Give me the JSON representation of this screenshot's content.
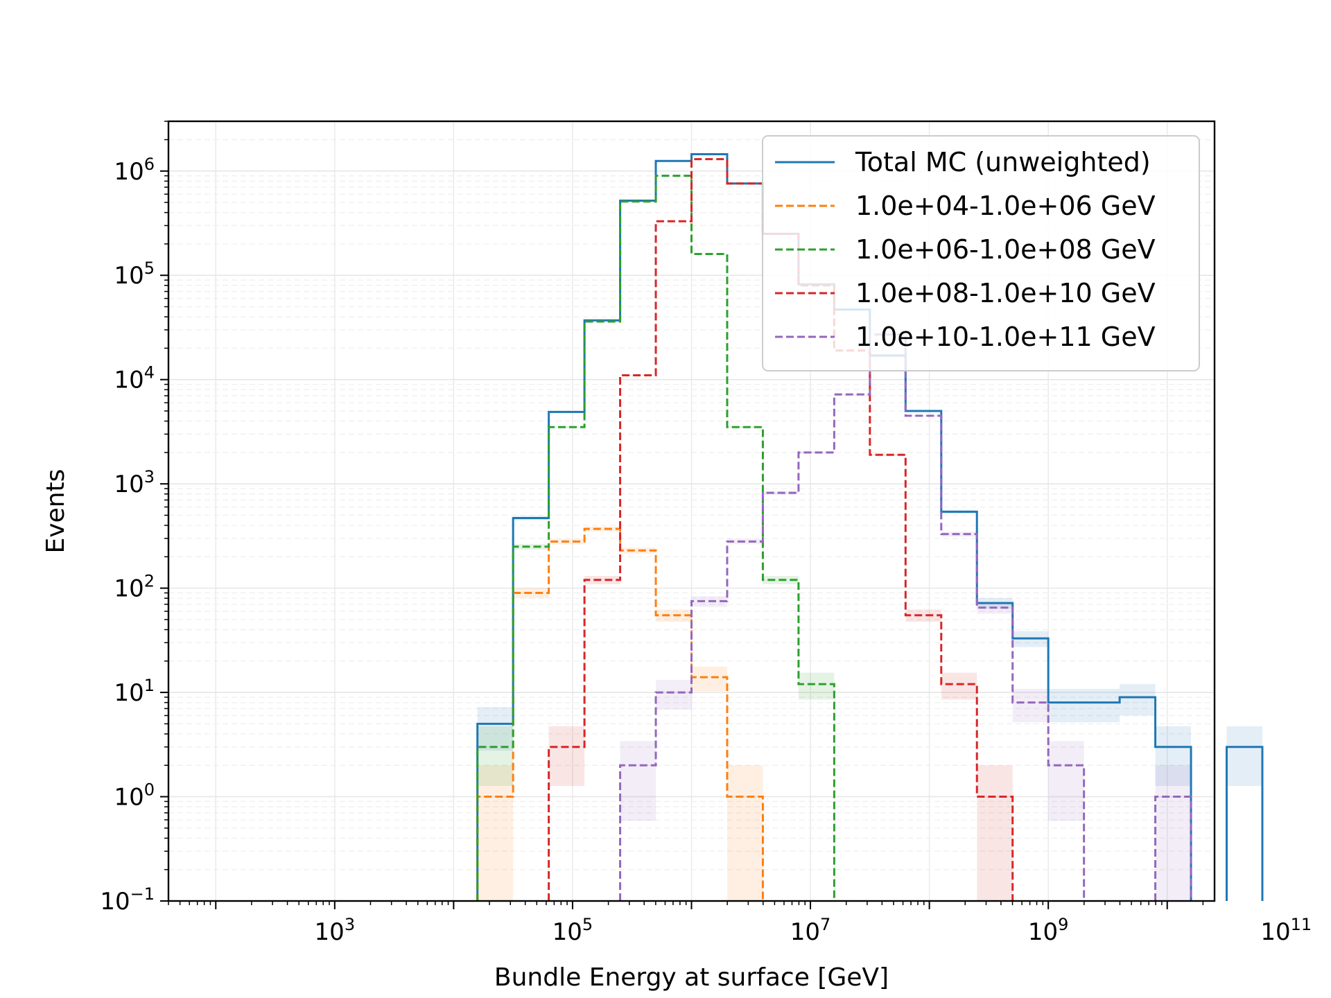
{
  "chart_data": {
    "type": "histogram-step",
    "xlabel": "Bundle Energy at surface [GeV]",
    "ylabel": "Events",
    "xscale": "log",
    "yscale": "log",
    "xlim": [
      40,
      25000000000
    ],
    "ylim": [
      0.1,
      3000000
    ],
    "grid": true,
    "legend_placement": "top-right",
    "x_ticks": [
      {
        "value": 1000,
        "base": "10",
        "exp": "3"
      },
      {
        "value": 100000,
        "base": "10",
        "exp": "5"
      },
      {
        "value": 10000000,
        "base": "10",
        "exp": "7"
      },
      {
        "value": 1000000000,
        "base": "10",
        "exp": "9"
      },
      {
        "value": 100000000000,
        "base": "10",
        "exp": "11"
      }
    ],
    "y_ticks": [
      {
        "value": 0.1,
        "base": "10",
        "exp": "−1"
      },
      {
        "value": 1,
        "base": "10",
        "exp": "0"
      },
      {
        "value": 10,
        "base": "10",
        "exp": "1"
      },
      {
        "value": 100,
        "base": "10",
        "exp": "2"
      },
      {
        "value": 1000,
        "base": "10",
        "exp": "3"
      },
      {
        "value": 10000,
        "base": "10",
        "exp": "4"
      },
      {
        "value": 100000,
        "base": "10",
        "exp": "5"
      },
      {
        "value": 1000000,
        "base": "10",
        "exp": "6"
      }
    ],
    "bin_edges": [
      15849,
      31623,
      63096,
      125893,
      251189,
      501187,
      1000000,
      1995262,
      3981072,
      7943282,
      15848932,
      31622777,
      63095734,
      125892541,
      251188643,
      501187234,
      1000000000,
      1995262315,
      3981071706,
      7943282347,
      15848931925,
      31622776602,
      63095734448,
      125892541179
    ],
    "series": [
      {
        "name": "Total MC (unweighted)",
        "color": "#1f77b4",
        "style": "solid",
        "values": [
          5,
          470,
          4900,
          37000,
          520000,
          1250000,
          1450000,
          760000,
          250000,
          82000,
          47000,
          17000,
          5000,
          540,
          72,
          33,
          8,
          8,
          9,
          3,
          0,
          3,
          0
        ]
      },
      {
        "name": "1.0e+04-1.0e+06 GeV",
        "color": "#ff7f0e",
        "style": "dashed",
        "values": [
          1,
          90,
          280,
          370,
          230,
          55,
          14,
          1,
          0,
          0,
          0,
          0,
          0,
          0,
          0,
          0,
          0,
          0,
          0,
          0,
          0,
          0,
          0
        ]
      },
      {
        "name": "1.0e+06-1.0e+08 GeV",
        "color": "#2ca02c",
        "style": "dashed",
        "values": [
          3,
          250,
          3500,
          36000,
          510000,
          900000,
          160000,
          3500,
          120,
          12,
          0,
          0,
          0,
          0,
          0,
          0,
          0,
          0,
          0,
          0,
          0,
          0,
          0
        ]
      },
      {
        "name": "1.0e+08-1.0e+10 GeV",
        "color": "#d62728",
        "style": "dashed",
        "values": [
          0,
          0,
          3,
          120,
          11000,
          330000,
          1300000,
          760000,
          250000,
          80000,
          19000,
          1900,
          55,
          12,
          1,
          0,
          0,
          0,
          0,
          0,
          0,
          0,
          0
        ]
      },
      {
        "name": "1.0e+10-1.0e+11 GeV",
        "color": "#9467bd",
        "style": "dashed",
        "values": [
          0,
          0,
          0,
          0,
          2,
          10,
          75,
          280,
          820,
          2000,
          7200,
          27000,
          4500,
          330,
          65,
          8,
          2,
          0,
          0,
          1,
          0,
          0,
          0
        ]
      }
    ]
  }
}
